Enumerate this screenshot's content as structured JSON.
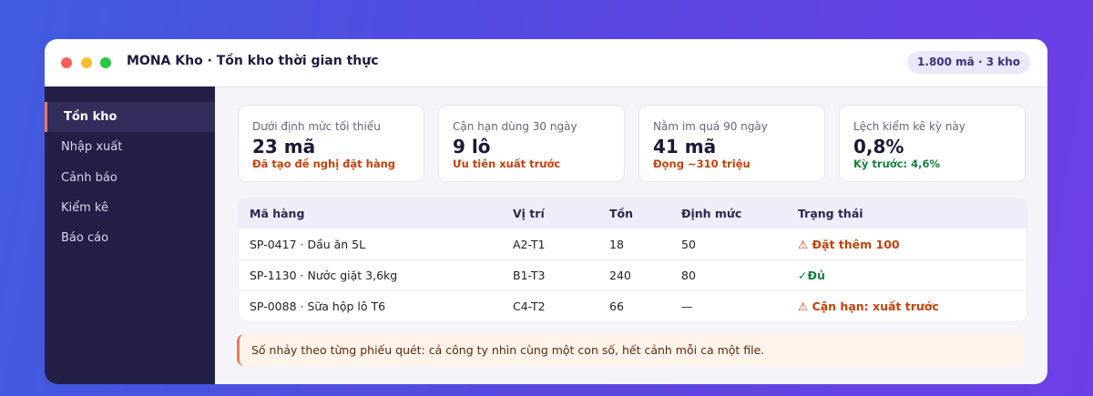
{
  "window": {
    "title": "MONA Kho · Tồn kho thời gian thực",
    "badge": "1.800 mã · 3 kho"
  },
  "sidebar": {
    "items": [
      "Tồn kho",
      "Nhập xuất",
      "Cảnh báo",
      "Kiểm kê",
      "Báo cáo"
    ]
  },
  "cards": [
    {
      "label": "Dưới định mức tối thiểu",
      "value": "23 mã",
      "note": "Đã tạo đề nghị đặt hàng"
    },
    {
      "label": "Cận hạn dùng 30 ngày",
      "value": "9 lô",
      "note": "Ưu tiên xuất trước"
    },
    {
      "label": "Nằm im quá 90 ngày",
      "value": "41 mã",
      "note": "Đọng ~310 triệu"
    },
    {
      "label": "Lệch kiểm kê kỳ này",
      "value": "0,8%",
      "note": "Kỳ trước: 4,6%"
    }
  ],
  "table": {
    "headers": [
      "Mã hàng",
      "Vị trí",
      "Tồn",
      "Định mức",
      "Trạng thái"
    ],
    "rows": [
      [
        "SP-0417 · Dầu ăn 5L",
        "A2-T1",
        "18",
        "50",
        "⚠ Đặt thêm 100"
      ],
      [
        "SP-1130 · Nước giặt 3,6kg",
        "B1-T3",
        "240",
        "80",
        "✓Đủ"
      ],
      [
        "SP-0088 · Sữa hộp lô T6",
        "C4-T2",
        "66",
        "—",
        "⚠ Cận hạn: xuất trước"
      ]
    ]
  },
  "note": "Số nhảy theo từng phiếu quét: cả công ty nhìn cùng một con số, hết cảnh mỗi ca một file."
}
